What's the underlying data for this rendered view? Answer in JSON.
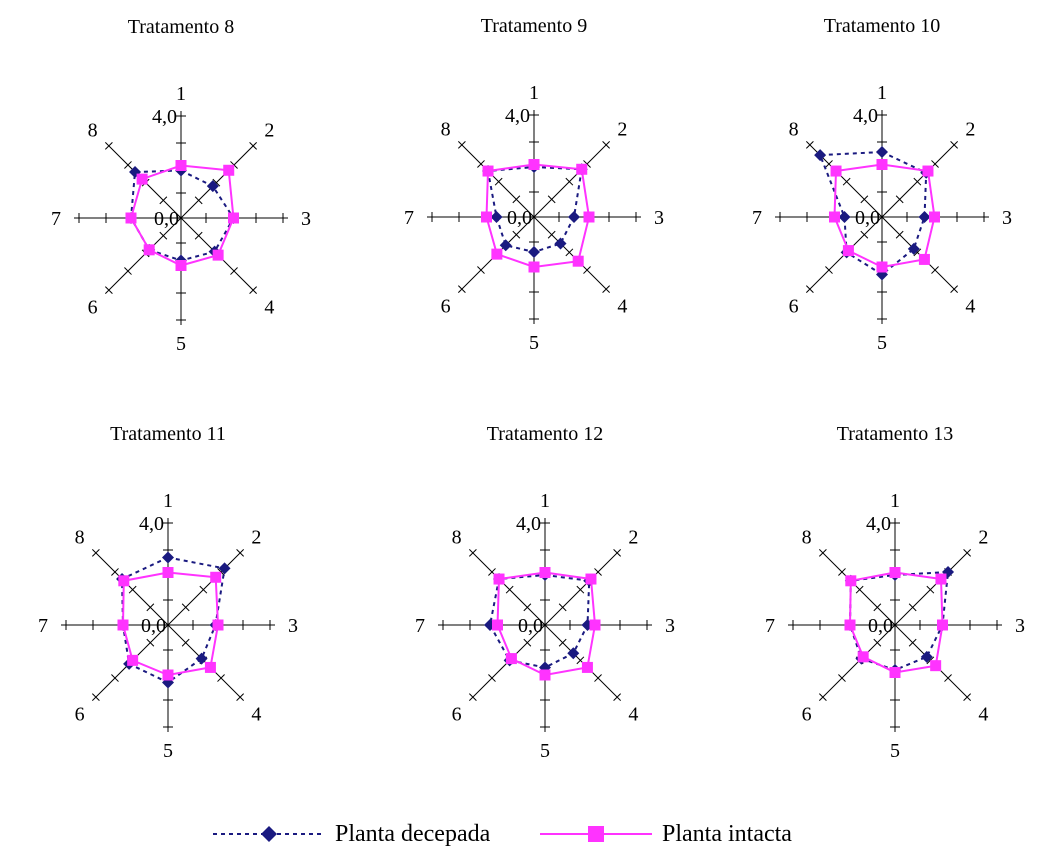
{
  "chart_data": [
    {
      "type": "radar",
      "title": "Tratamento 8",
      "axes": [
        "1",
        "2",
        "3",
        "4",
        "5",
        "6",
        "7",
        "8"
      ],
      "tick_labels": [
        "0,0",
        "4,0"
      ],
      "rmax": 5,
      "series": [
        {
          "name": "Planta decepada",
          "values": [
            1.9,
            1.8,
            2.1,
            1.9,
            1.7,
            1.8,
            2.0,
            2.6
          ]
        },
        {
          "name": "Planta intacta",
          "values": [
            2.1,
            2.7,
            2.1,
            2.1,
            1.9,
            1.8,
            2.0,
            2.2
          ]
        }
      ]
    },
    {
      "type": "radar",
      "title": "Tratamento 9",
      "axes": [
        "1",
        "2",
        "3",
        "4",
        "5",
        "6",
        "7",
        "8"
      ],
      "tick_labels": [
        "0,0",
        "4,0"
      ],
      "rmax": 5,
      "series": [
        {
          "name": "Planta decepada",
          "values": [
            2.0,
            2.7,
            1.6,
            1.5,
            1.4,
            1.6,
            1.5,
            2.6
          ]
        },
        {
          "name": "Planta intacta",
          "values": [
            2.1,
            2.7,
            2.2,
            2.5,
            2.0,
            2.1,
            1.9,
            2.6
          ]
        }
      ]
    },
    {
      "type": "radar",
      "title": "Tratamento 10",
      "axes": [
        "1",
        "2",
        "3",
        "4",
        "5",
        "6",
        "7",
        "8"
      ],
      "tick_labels": [
        "0,0",
        "4,0"
      ],
      "rmax": 5,
      "series": [
        {
          "name": "Planta decepada",
          "values": [
            2.6,
            2.5,
            1.7,
            1.8,
            2.3,
            2.0,
            1.5,
            3.5
          ]
        },
        {
          "name": "Planta intacta",
          "values": [
            2.1,
            2.6,
            2.1,
            2.4,
            2.0,
            1.9,
            1.9,
            2.6
          ]
        }
      ]
    },
    {
      "type": "radar",
      "title": "Tratamento 11",
      "axes": [
        "1",
        "2",
        "3",
        "4",
        "5",
        "6",
        "7",
        "8"
      ],
      "tick_labels": [
        "0,0",
        "4,0"
      ],
      "rmax": 5,
      "series": [
        {
          "name": "Planta decepada",
          "values": [
            2.7,
            3.2,
            1.9,
            1.9,
            2.3,
            2.2,
            1.8,
            2.6
          ]
        },
        {
          "name": "Planta intacta",
          "values": [
            2.1,
            2.7,
            2.0,
            2.4,
            2.0,
            2.0,
            1.8,
            2.5
          ]
        }
      ]
    },
    {
      "type": "radar",
      "title": "Tratamento 12",
      "axes": [
        "1",
        "2",
        "3",
        "4",
        "5",
        "6",
        "7",
        "8"
      ],
      "tick_labels": [
        "0,0",
        "4,0"
      ],
      "rmax": 5,
      "series": [
        {
          "name": "Planta decepada",
          "values": [
            2.0,
            2.5,
            1.7,
            1.6,
            1.7,
            2.0,
            2.2,
            2.6
          ]
        },
        {
          "name": "Planta intacta",
          "values": [
            2.1,
            2.6,
            2.0,
            2.4,
            2.0,
            1.9,
            1.9,
            2.6
          ]
        }
      ]
    },
    {
      "type": "radar",
      "title": "Tratamento 13",
      "axes": [
        "1",
        "2",
        "3",
        "4",
        "5",
        "6",
        "7",
        "8"
      ],
      "tick_labels": [
        "0,0",
        "4,0"
      ],
      "rmax": 5,
      "series": [
        {
          "name": "Planta decepada",
          "values": [
            2.0,
            3.0,
            1.9,
            1.8,
            1.8,
            1.9,
            1.8,
            2.5
          ]
        },
        {
          "name": "Planta intacta",
          "values": [
            2.1,
            2.6,
            1.9,
            2.3,
            1.9,
            1.8,
            1.8,
            2.5
          ]
        }
      ]
    }
  ],
  "legend": {
    "decepada_label": "Planta decepada",
    "intacta_label": "Planta intacta"
  },
  "colors": {
    "decepada": "#1a1a80",
    "intacta": "#ff33ff",
    "axis": "#000000"
  },
  "markers": {
    "decepada": "diamond",
    "intacta": "square"
  }
}
